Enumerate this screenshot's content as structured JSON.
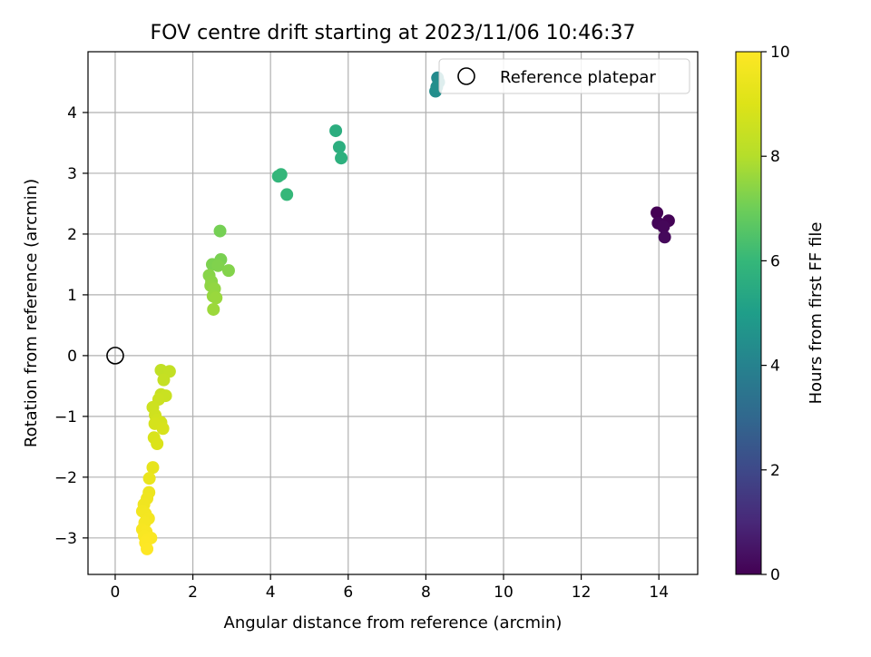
{
  "chart_data": {
    "type": "scatter",
    "title": "FOV centre drift starting at 2023/11/06 10:46:37",
    "xlabel": "Angular distance from reference (arcmin)",
    "ylabel": "Rotation from reference (arcmin)",
    "xlim": [
      -0.7,
      15.0
    ],
    "ylim": [
      -3.6,
      5.0
    ],
    "xticks": [
      0,
      2,
      4,
      6,
      8,
      10,
      12,
      14
    ],
    "yticks": [
      -3,
      -2,
      -1,
      0,
      1,
      2,
      3,
      4
    ],
    "grid": true,
    "legend": {
      "location": "top-right",
      "entries": [
        "Reference platepar"
      ]
    },
    "reference_point": {
      "x": 0,
      "y": 0,
      "label": "Reference platepar"
    },
    "colorbar": {
      "label": "Hours from first FF file",
      "colormap": "viridis",
      "range": [
        0,
        10
      ],
      "ticks": [
        0,
        2,
        4,
        6,
        8,
        10
      ]
    },
    "points": [
      {
        "x": 13.95,
        "y": 2.35,
        "c": 0.0
      },
      {
        "x": 14.25,
        "y": 2.22,
        "c": 0.05
      },
      {
        "x": 13.98,
        "y": 2.18,
        "c": 0.1
      },
      {
        "x": 14.12,
        "y": 2.12,
        "c": 0.15
      },
      {
        "x": 14.15,
        "y": 1.95,
        "c": 0.2
      },
      {
        "x": 8.3,
        "y": 4.57,
        "c": 4.3
      },
      {
        "x": 8.33,
        "y": 4.5,
        "c": 4.35
      },
      {
        "x": 8.25,
        "y": 4.35,
        "c": 4.4
      },
      {
        "x": 8.28,
        "y": 4.42,
        "c": 4.45
      },
      {
        "x": 5.68,
        "y": 3.7,
        "c": 5.6
      },
      {
        "x": 5.77,
        "y": 3.43,
        "c": 5.65
      },
      {
        "x": 5.82,
        "y": 3.25,
        "c": 5.7
      },
      {
        "x": 4.2,
        "y": 2.95,
        "c": 5.9
      },
      {
        "x": 4.27,
        "y": 2.98,
        "c": 5.95
      },
      {
        "x": 4.42,
        "y": 2.65,
        "c": 6.0
      },
      {
        "x": 2.7,
        "y": 2.05,
        "c": 7.1
      },
      {
        "x": 2.72,
        "y": 1.58,
        "c": 7.15
      },
      {
        "x": 2.5,
        "y": 1.5,
        "c": 7.2
      },
      {
        "x": 2.65,
        "y": 1.48,
        "c": 7.25
      },
      {
        "x": 2.92,
        "y": 1.4,
        "c": 7.3
      },
      {
        "x": 2.42,
        "y": 1.32,
        "c": 7.35
      },
      {
        "x": 2.48,
        "y": 1.22,
        "c": 7.4
      },
      {
        "x": 2.46,
        "y": 1.15,
        "c": 7.45
      },
      {
        "x": 2.56,
        "y": 1.1,
        "c": 7.5
      },
      {
        "x": 2.52,
        "y": 0.98,
        "c": 7.55
      },
      {
        "x": 2.6,
        "y": 0.95,
        "c": 7.6
      },
      {
        "x": 2.53,
        "y": 0.76,
        "c": 7.65
      },
      {
        "x": 1.18,
        "y": -0.24,
        "c": 8.3
      },
      {
        "x": 1.4,
        "y": -0.26,
        "c": 8.35
      },
      {
        "x": 1.25,
        "y": -0.4,
        "c": 8.4
      },
      {
        "x": 1.18,
        "y": -0.64,
        "c": 8.45
      },
      {
        "x": 1.3,
        "y": -0.66,
        "c": 8.5
      },
      {
        "x": 1.12,
        "y": -0.72,
        "c": 8.55
      },
      {
        "x": 0.97,
        "y": -0.85,
        "c": 8.6
      },
      {
        "x": 1.03,
        "y": -0.98,
        "c": 8.65
      },
      {
        "x": 1.08,
        "y": -1.06,
        "c": 8.7
      },
      {
        "x": 1.18,
        "y": -1.1,
        "c": 8.75
      },
      {
        "x": 1.02,
        "y": -1.12,
        "c": 8.8
      },
      {
        "x": 1.23,
        "y": -1.2,
        "c": 8.85
      },
      {
        "x": 1.0,
        "y": -1.35,
        "c": 8.9
      },
      {
        "x": 1.08,
        "y": -1.45,
        "c": 8.95
      },
      {
        "x": 0.97,
        "y": -1.84,
        "c": 9.3
      },
      {
        "x": 0.88,
        "y": -2.02,
        "c": 9.4
      },
      {
        "x": 0.87,
        "y": -2.25,
        "c": 9.5
      },
      {
        "x": 0.82,
        "y": -2.35,
        "c": 9.55
      },
      {
        "x": 0.74,
        "y": -2.45,
        "c": 9.6
      },
      {
        "x": 0.7,
        "y": -2.56,
        "c": 9.65
      },
      {
        "x": 0.78,
        "y": -2.6,
        "c": 9.7
      },
      {
        "x": 0.86,
        "y": -2.68,
        "c": 9.72
      },
      {
        "x": 0.76,
        "y": -2.75,
        "c": 9.75
      },
      {
        "x": 0.7,
        "y": -2.86,
        "c": 9.8
      },
      {
        "x": 0.8,
        "y": -2.9,
        "c": 9.85
      },
      {
        "x": 0.75,
        "y": -2.97,
        "c": 9.88
      },
      {
        "x": 0.92,
        "y": -3.0,
        "c": 9.9
      },
      {
        "x": 0.83,
        "y": -3.03,
        "c": 9.93
      },
      {
        "x": 0.78,
        "y": -3.08,
        "c": 9.96
      },
      {
        "x": 0.82,
        "y": -3.18,
        "c": 10.0
      }
    ]
  }
}
